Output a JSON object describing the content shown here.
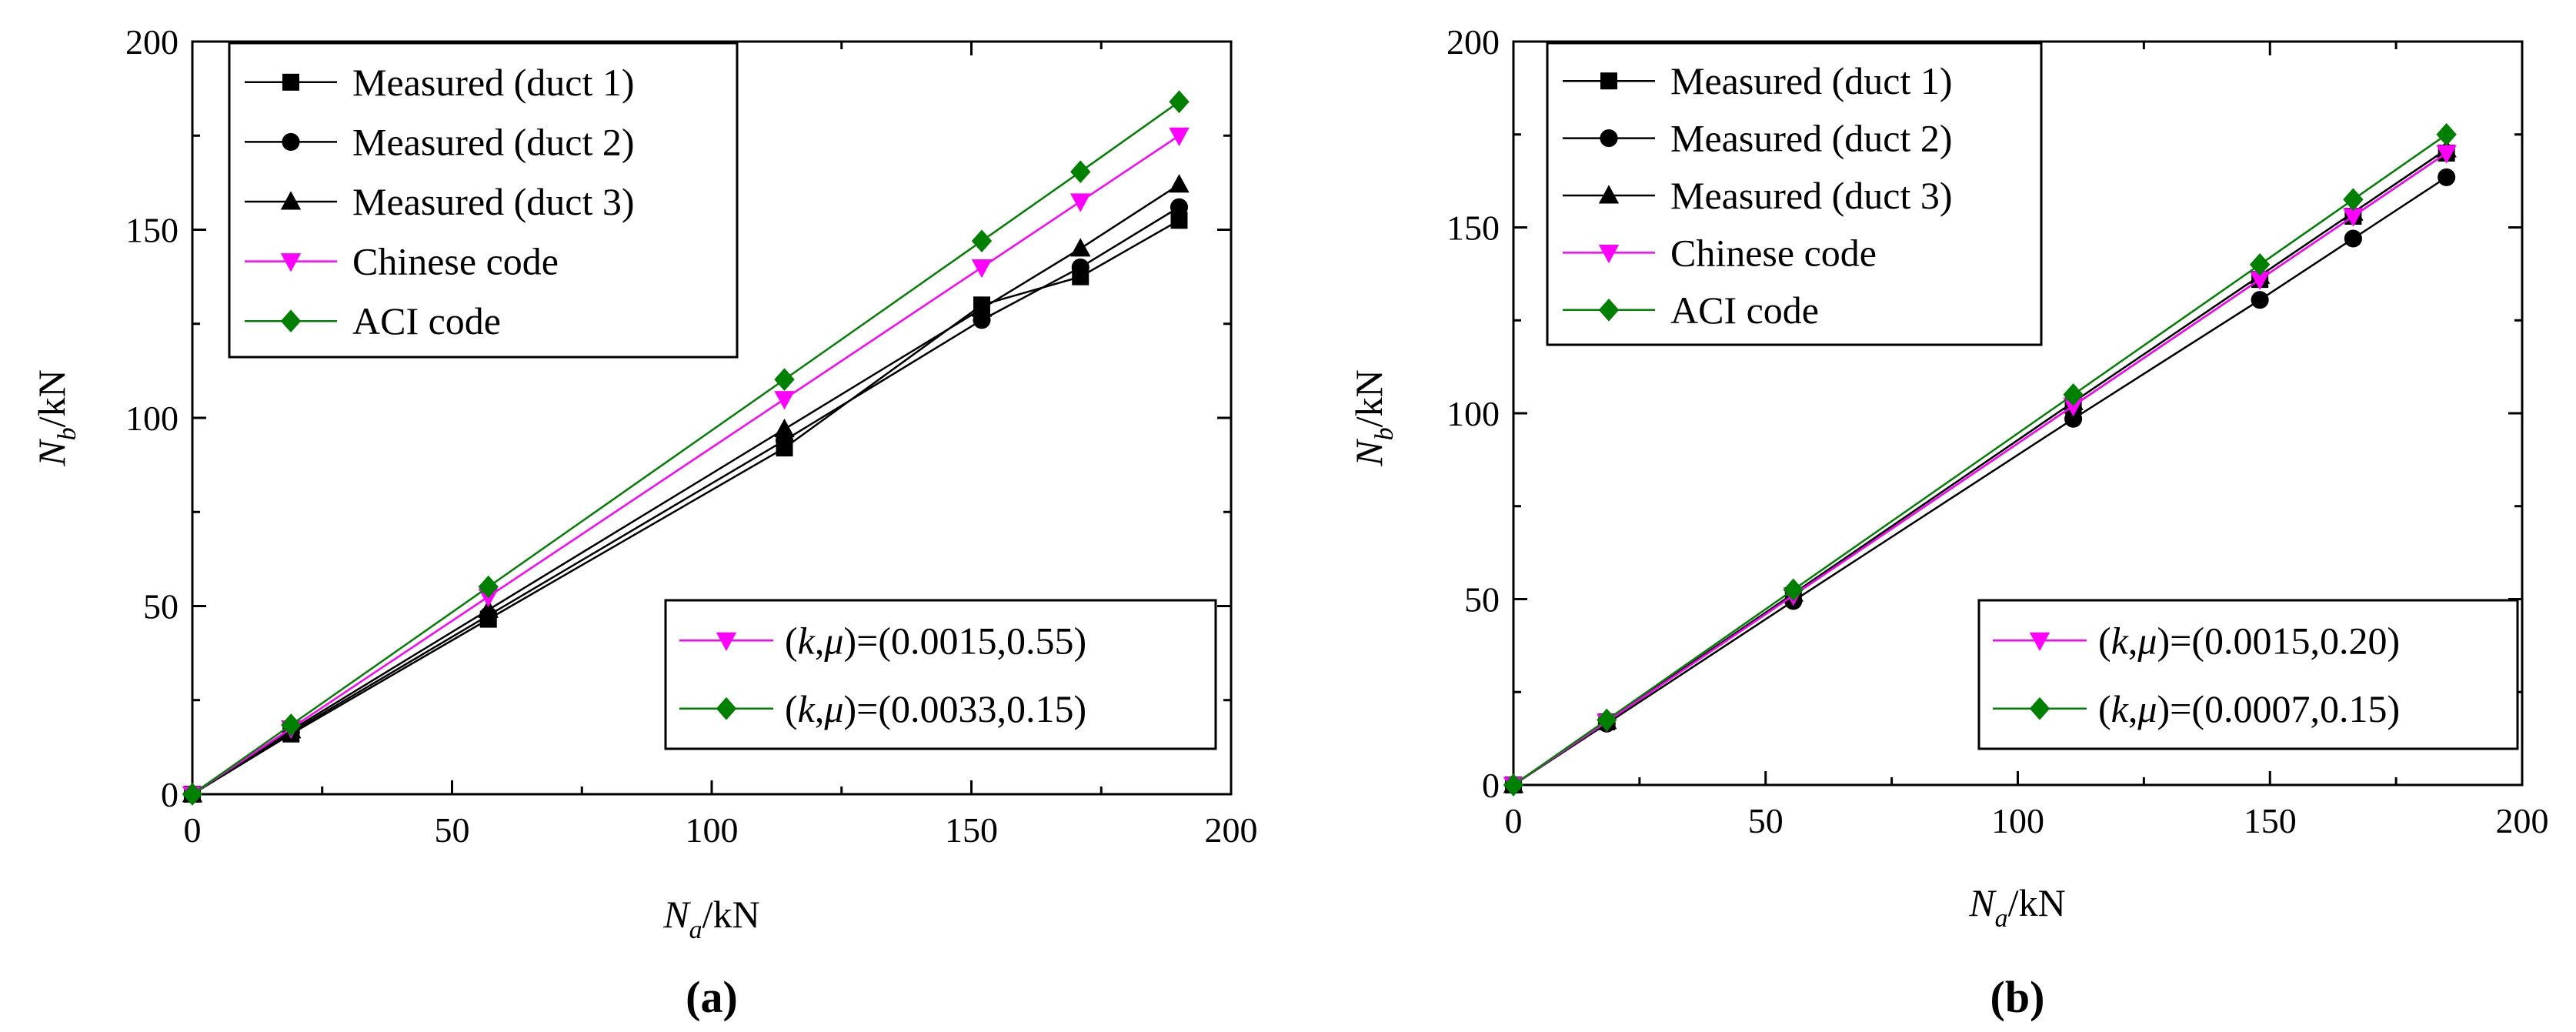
{
  "figure_panels": [
    "a",
    "b"
  ],
  "chart_data": [
    {
      "type": "line",
      "panel": "a",
      "caption": "(a)",
      "xlabel": "N_a/kN",
      "ylabel": "N_b/kN",
      "xlabel_main": "N",
      "xlabel_sub": "a",
      "xlabel_unit": "/kN",
      "ylabel_main": "N",
      "ylabel_sub": "b",
      "ylabel_unit": "/kN",
      "xlim": [
        0,
        200
      ],
      "ylim": [
        0,
        200
      ],
      "xticks": [
        0,
        50,
        100,
        150,
        200
      ],
      "yticks": [
        0,
        50,
        100,
        150,
        200
      ],
      "grid": false,
      "legend_main": "top-left",
      "legend_params": "bottom-right",
      "series": [
        {
          "name": "Measured (duct 1)",
          "legend": "Measured (duct 1)",
          "marker": "square",
          "color": "#000000",
          "x": [
            0,
            19,
            57,
            114,
            152,
            171,
            190
          ],
          "y": [
            0,
            16,
            46.5,
            92,
            130,
            137.5,
            152.5
          ]
        },
        {
          "name": "Measured (duct 2)",
          "legend": "Measured (duct 2)",
          "marker": "circle",
          "color": "#000000",
          "x": [
            0,
            19,
            57,
            114,
            152,
            171,
            190
          ],
          "y": [
            0,
            16.5,
            47.5,
            94,
            126,
            140,
            156
          ]
        },
        {
          "name": "Measured (duct 3)",
          "legend": "Measured (duct 3)",
          "marker": "triangle-up",
          "color": "#000000",
          "x": [
            0,
            19,
            57,
            114,
            152,
            171,
            190
          ],
          "y": [
            0,
            17,
            49,
            97,
            129,
            145,
            162
          ]
        },
        {
          "name": "Chinese code",
          "legend": "Chinese code",
          "marker": "triangle-down",
          "color": "#ff00ff",
          "x": [
            0,
            19,
            57,
            114,
            152,
            171,
            190
          ],
          "y": [
            0,
            17.5,
            52.5,
            105,
            140,
            157.5,
            175
          ]
        },
        {
          "name": "ACI code",
          "legend": "ACI code",
          "marker": "diamond",
          "color": "#008000",
          "x": [
            0,
            19,
            57,
            114,
            152,
            171,
            190
          ],
          "y": [
            0,
            18.4,
            55.1,
            110.2,
            147,
            165.4,
            184
          ]
        }
      ],
      "param_legend": [
        {
          "marker": "triangle-down",
          "color": "#ff00ff",
          "k": "k",
          "mu": "μ",
          "prefix": "(",
          "mid": ",",
          "value": ")=(0.0015,0.55)"
        },
        {
          "marker": "diamond",
          "color": "#008000",
          "k": "k",
          "mu": "μ",
          "prefix": "(",
          "mid": ",",
          "value": ")=(0.0033,0.15)"
        }
      ]
    },
    {
      "type": "line",
      "panel": "b",
      "caption": "(b)",
      "xlabel": "N_a/kN",
      "ylabel": "N_b/kN",
      "xlabel_main": "N",
      "xlabel_sub": "a",
      "xlabel_unit": "/kN",
      "ylabel_main": "N",
      "ylabel_sub": "b",
      "ylabel_unit": "/kN",
      "xlim": [
        0,
        200
      ],
      "ylim": [
        0,
        200
      ],
      "xticks": [
        0,
        50,
        100,
        150,
        200
      ],
      "yticks": [
        0,
        50,
        100,
        150,
        200
      ],
      "grid": false,
      "legend_main": "top-left",
      "legend_params": "bottom-right",
      "series": [
        {
          "name": "Measured (duct 1)",
          "legend": "Measured (duct 1)",
          "marker": "square",
          "color": "#000000",
          "x": [
            0,
            18.5,
            55.5,
            111,
            148,
            166.5,
            185
          ],
          "y": [
            0,
            17,
            51,
            102,
            136,
            153,
            170
          ]
        },
        {
          "name": "Measured (duct 2)",
          "legend": "Measured (duct 2)",
          "marker": "circle",
          "color": "#000000",
          "x": [
            0,
            18.5,
            55.5,
            111,
            148,
            166.5,
            185
          ],
          "y": [
            0,
            16.5,
            49.5,
            98.5,
            130.5,
            147,
            163.5
          ]
        },
        {
          "name": "Measured (duct 3)",
          "legend": "Measured (duct 3)",
          "marker": "triangle-up",
          "color": "#000000",
          "x": [
            0,
            18.5,
            55.5,
            111,
            148,
            166.5,
            185
          ],
          "y": [
            0,
            17.2,
            51.5,
            103,
            137,
            154,
            171
          ]
        },
        {
          "name": "Chinese code",
          "legend": "Chinese code",
          "marker": "triangle-down",
          "color": "#ff00ff",
          "x": [
            0,
            18.5,
            55.5,
            111,
            148,
            166.5,
            185
          ],
          "y": [
            0,
            17,
            51,
            102,
            136,
            153,
            170
          ]
        },
        {
          "name": "ACI code",
          "legend": "ACI code",
          "marker": "diamond",
          "color": "#008000",
          "x": [
            0,
            18.5,
            55.5,
            111,
            148,
            166.5,
            185
          ],
          "y": [
            0,
            17.5,
            52.5,
            105,
            140,
            157.5,
            175
          ]
        }
      ],
      "param_legend": [
        {
          "marker": "triangle-down",
          "color": "#ff00ff",
          "k": "k",
          "mu": "μ",
          "prefix": "(",
          "mid": ",",
          "value": ")=(0.0015,0.20)"
        },
        {
          "marker": "diamond",
          "color": "#008000",
          "k": "k",
          "mu": "μ",
          "prefix": "(",
          "mid": ",",
          "value": ")=(0.0007,0.15)"
        }
      ]
    }
  ]
}
